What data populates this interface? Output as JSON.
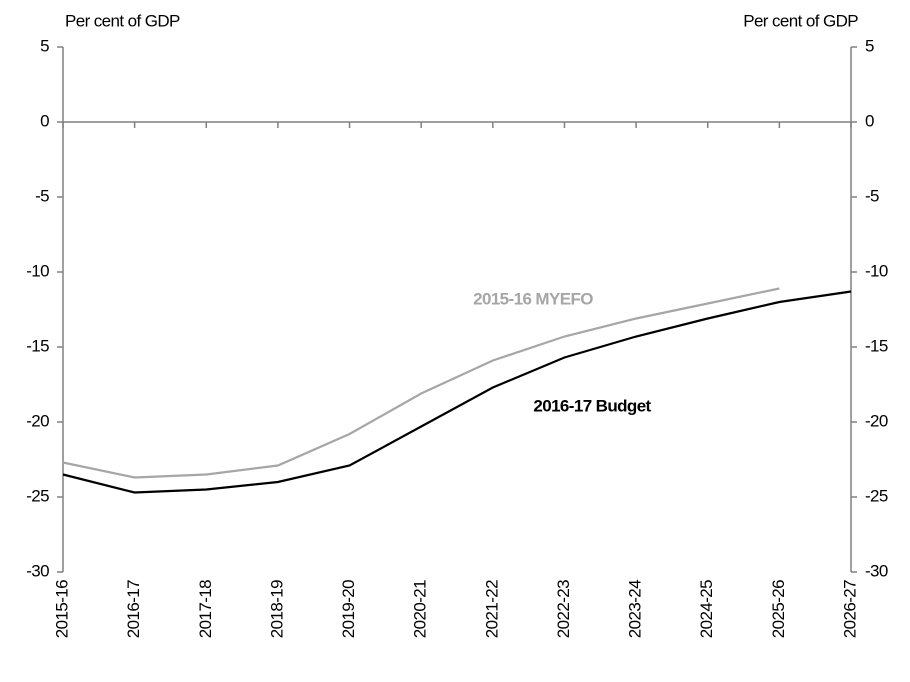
{
  "chart_data": {
    "type": "line",
    "y_label": "Per cent of GDP",
    "y2_label": "Per cent of GDP",
    "categories": [
      "2015-16",
      "2016-17",
      "2017-18",
      "2018-19",
      "2019-20",
      "2020-21",
      "2021-22",
      "2022-23",
      "2023-24",
      "2024-25",
      "2025-26",
      "2026-27"
    ],
    "series": [
      {
        "name": "2015-16 MYEFO",
        "color": "#a6a6a6",
        "values": [
          -22.7,
          -23.7,
          -23.5,
          -22.9,
          -20.8,
          -18.1,
          -15.9,
          -14.3,
          -13.1,
          -12.1,
          -11.1,
          null
        ]
      },
      {
        "name": "2016-17 Budget",
        "color": "#000000",
        "values": [
          -23.5,
          -24.7,
          -24.5,
          -24.0,
          -22.9,
          -20.3,
          -17.7,
          -15.7,
          -14.3,
          -13.1,
          -12.0,
          -11.3
        ]
      }
    ],
    "ylim": [
      -30,
      5
    ],
    "yticks": [
      5,
      0,
      -5,
      -10,
      -15,
      -20,
      -25,
      -30
    ],
    "y2lim": [
      -30,
      5
    ],
    "y2ticks": [
      5,
      0,
      -5,
      -10,
      -15,
      -20,
      -25,
      -30
    ]
  }
}
